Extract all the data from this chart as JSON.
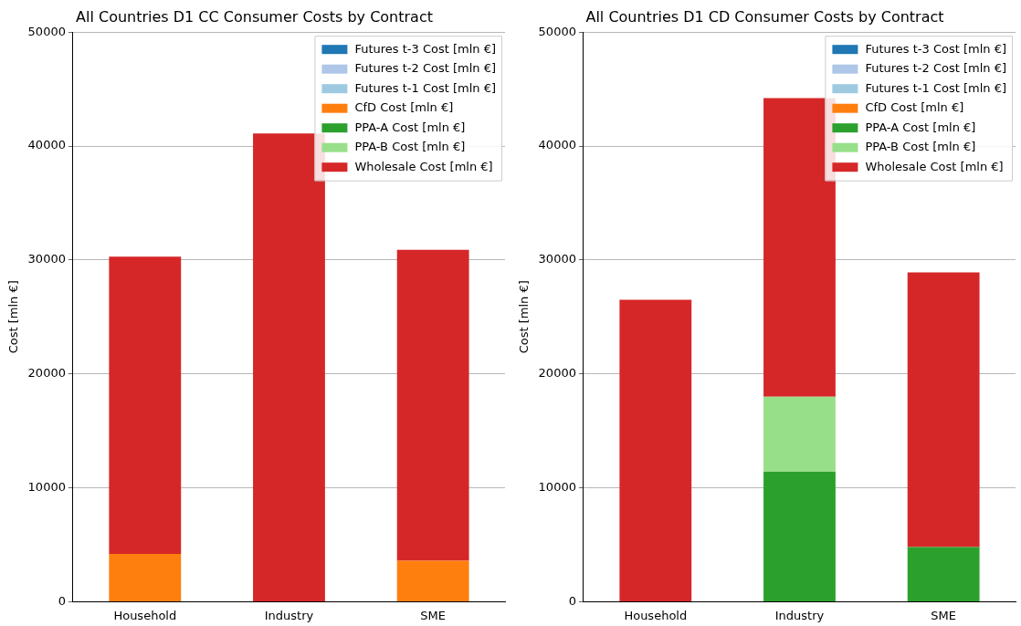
{
  "chart_data": [
    {
      "type": "bar",
      "title": "All Countries D1 CC Consumer Costs by Contract",
      "ylabel": "Cost [mln €]",
      "categories": [
        "Household",
        "Industry",
        "SME"
      ],
      "stacked": true,
      "ylim": [
        0,
        50000
      ],
      "yticks": [
        0,
        10000,
        20000,
        30000,
        40000,
        50000
      ],
      "grid": "y",
      "legend": "top right",
      "series": [
        {
          "name": "Futures t-3 Cost [mln €]",
          "color": "#1f77b4",
          "values": [
            0,
            0,
            0
          ]
        },
        {
          "name": "Futures t-2 Cost [mln €]",
          "color": "#aec7e8",
          "values": [
            0,
            0,
            0
          ]
        },
        {
          "name": "Futures t-1 Cost [mln €]",
          "color": "#9ecae1",
          "values": [
            0,
            0,
            0
          ]
        },
        {
          "name": "CfD Cost [mln €]",
          "color": "#ff7f0e",
          "values": [
            4200,
            0,
            3600
          ]
        },
        {
          "name": "PPA-A Cost [mln €]",
          "color": "#2ca02c",
          "values": [
            0,
            0,
            0
          ]
        },
        {
          "name": "PPA-B Cost [mln €]",
          "color": "#98df8a",
          "values": [
            0,
            0,
            0
          ]
        },
        {
          "name": "Wholesale Cost [mln €]",
          "color": "#d62728",
          "values": [
            26100,
            41100,
            27300
          ]
        }
      ]
    },
    {
      "type": "bar",
      "title": "All Countries D1 CD Consumer Costs by Contract",
      "ylabel": "Cost [mln €]",
      "categories": [
        "Household",
        "Industry",
        "SME"
      ],
      "stacked": true,
      "ylim": [
        0,
        50000
      ],
      "yticks": [
        0,
        10000,
        20000,
        30000,
        40000,
        50000
      ],
      "grid": "y",
      "legend": "top right",
      "series": [
        {
          "name": "Futures t-3 Cost [mln €]",
          "color": "#1f77b4",
          "values": [
            0,
            0,
            0
          ]
        },
        {
          "name": "Futures t-2 Cost [mln €]",
          "color": "#aec7e8",
          "values": [
            0,
            0,
            0
          ]
        },
        {
          "name": "Futures t-1 Cost [mln €]",
          "color": "#9ecae1",
          "values": [
            0,
            0,
            0
          ]
        },
        {
          "name": "CfD Cost [mln €]",
          "color": "#ff7f0e",
          "values": [
            0,
            0,
            0
          ]
        },
        {
          "name": "PPA-A Cost [mln €]",
          "color": "#2ca02c",
          "values": [
            0,
            11400,
            4800
          ]
        },
        {
          "name": "PPA-B Cost [mln €]",
          "color": "#98df8a",
          "values": [
            0,
            6600,
            0
          ]
        },
        {
          "name": "Wholesale Cost [mln €]",
          "color": "#d62728",
          "values": [
            26500,
            26200,
            24100
          ]
        }
      ]
    }
  ]
}
